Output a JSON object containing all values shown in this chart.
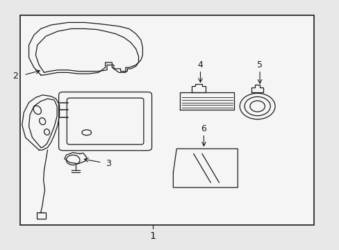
{
  "bg_color": "#e8e8e8",
  "box_color": "#f5f5f5",
  "line_color": "#1a1a1a",
  "figsize": [
    4.89,
    3.6
  ],
  "dpi": 100
}
